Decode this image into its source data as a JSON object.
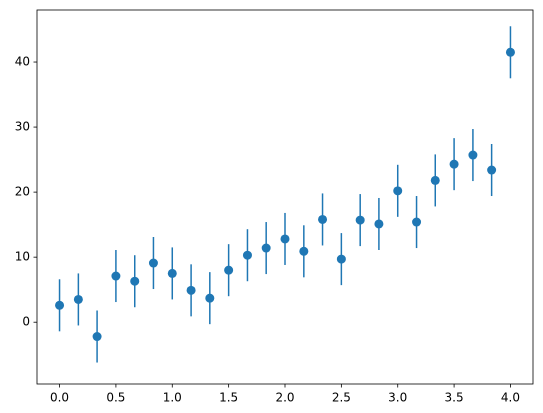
{
  "chart_data": {
    "type": "errorbar",
    "x": [
      0,
      0.167,
      0.333,
      0.5,
      0.667,
      0.833,
      1.0,
      1.167,
      1.333,
      1.5,
      1.667,
      1.833,
      2.0,
      2.167,
      2.333,
      2.5,
      2.667,
      2.833,
      3.0,
      3.167,
      3.333,
      3.5,
      3.667,
      3.833,
      4.0
    ],
    "values": [
      2.6,
      3.5,
      -2.2,
      7.1,
      6.3,
      9.1,
      7.5,
      4.9,
      3.7,
      8.0,
      10.3,
      11.4,
      12.8,
      10.9,
      15.8,
      9.7,
      15.7,
      15.1,
      20.2,
      15.4,
      21.8,
      24.3,
      25.7,
      23.4,
      41.5
    ],
    "errors": [
      4,
      4,
      4,
      4,
      4,
      4,
      4,
      4,
      4,
      4,
      4,
      4,
      4,
      4,
      4,
      4,
      4,
      4,
      4,
      4,
      4,
      4,
      4,
      4,
      4
    ],
    "color": "#1f77b4",
    "xlim": [
      -0.2,
      4.2
    ],
    "xticks": [
      {
        "value": 0,
        "label": "0.0"
      },
      {
        "value": 0.5,
        "label": "0.5"
      },
      {
        "value": 1,
        "label": "1.0"
      },
      {
        "value": 1.5,
        "label": "1.5"
      },
      {
        "value": 2,
        "label": "2.0"
      },
      {
        "value": 2.5,
        "label": "2.5"
      },
      {
        "value": 3,
        "label": "3.0"
      },
      {
        "value": 3.5,
        "label": "3.5"
      },
      {
        "value": 4,
        "label": "4.0"
      }
    ],
    "ylim": [
      -9.5,
      48
    ],
    "yticks": [
      0,
      10,
      20,
      30,
      40
    ]
  }
}
